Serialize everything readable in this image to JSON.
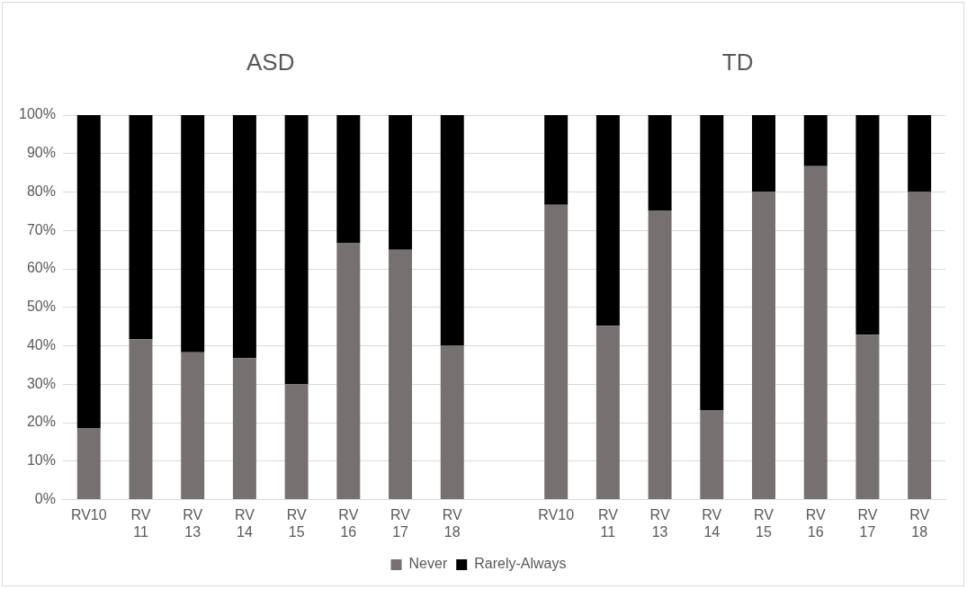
{
  "chart_data": {
    "type": "bar",
    "stacked": true,
    "categories": [
      "RV10",
      "RV 11",
      "RV 13",
      "RV 14",
      "RV 15",
      "RV 16",
      "RV 17",
      "RV 18",
      null,
      "RV10",
      "RV 11",
      "RV 13",
      "RV 14",
      "RV 15",
      "RV 16",
      "RV 17",
      "RV 18"
    ],
    "series": [
      {
        "name": "Never",
        "color": "#767171",
        "values": [
          18.5,
          41.7,
          38.3,
          36.8,
          30,
          66.7,
          65,
          40,
          null,
          76.7,
          45.2,
          75.2,
          23.3,
          80,
          86.7,
          42.9,
          80
        ]
      },
      {
        "name": "Rarely-Always",
        "color": "#000000",
        "values": [
          81.5,
          58.3,
          61.7,
          63.2,
          70,
          33.3,
          35,
          60,
          null,
          23.3,
          54.8,
          24.8,
          76.7,
          20,
          13.3,
          57.1,
          20
        ]
      }
    ],
    "annotations": [
      "ASD",
      "TD"
    ],
    "ylim": [
      0,
      100
    ],
    "yticks": [
      {
        "value": 0,
        "label": "0%"
      },
      {
        "value": 10,
        "label": "10%"
      },
      {
        "value": 20,
        "label": "20%"
      },
      {
        "value": 30,
        "label": "30%"
      },
      {
        "value": 40,
        "label": "40%"
      },
      {
        "value": 50,
        "label": "50%"
      },
      {
        "value": 60,
        "label": "60%"
      },
      {
        "value": 70,
        "label": "70%"
      },
      {
        "value": 80,
        "label": "80%"
      },
      {
        "value": 90,
        "label": "90%"
      },
      {
        "value": 100,
        "label": "100%"
      }
    ],
    "grid": "y",
    "legend": "bottom"
  }
}
